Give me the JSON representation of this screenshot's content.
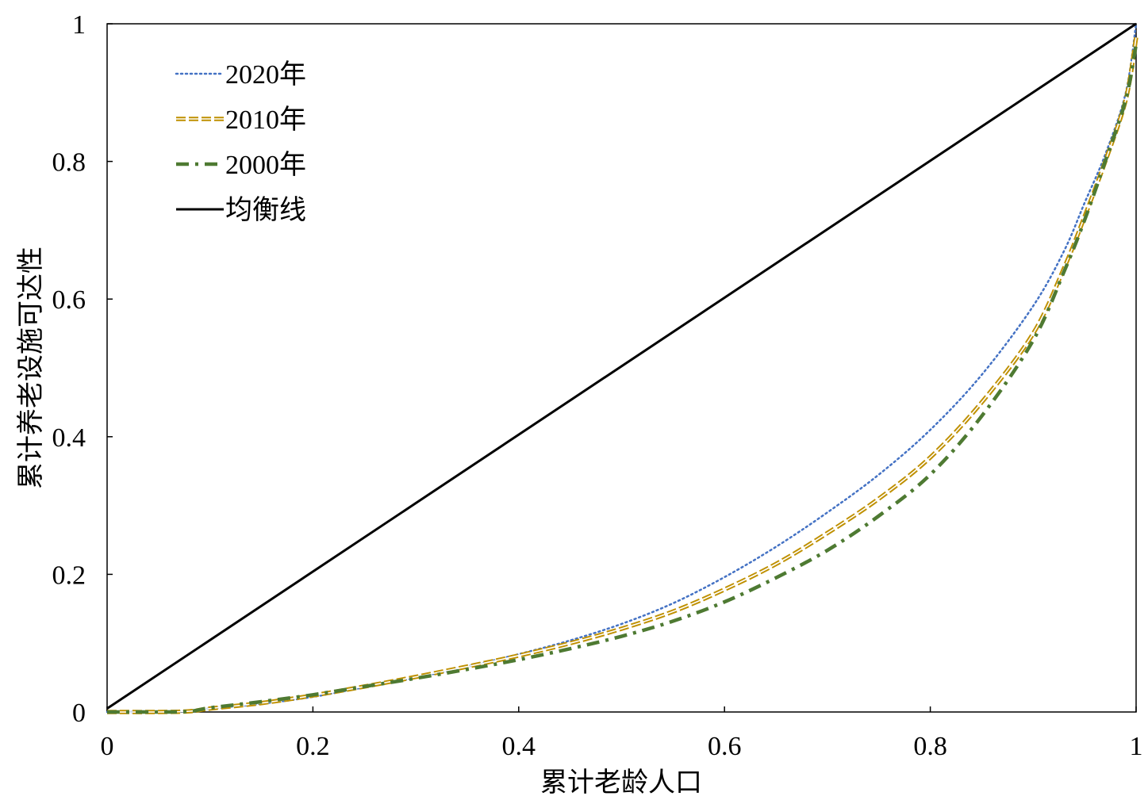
{
  "chart_data": {
    "type": "line",
    "title": "",
    "xlabel": "累计老龄人口",
    "ylabel": "累计养老设施可达性",
    "xlim": [
      0,
      1
    ],
    "ylim": [
      0,
      1
    ],
    "xticks": [
      0,
      0.2,
      0.4,
      0.6,
      0.8,
      1
    ],
    "xtick_labels": [
      "0",
      "0.2",
      "0.4",
      "0.6",
      "0.8",
      "1"
    ],
    "yticks": [
      0,
      0.2,
      0.4,
      0.6,
      0.8,
      1
    ],
    "ytick_labels": [
      "0",
      "0.2",
      "0.4",
      "0.6",
      "0.8",
      "1"
    ],
    "grid": false,
    "legend_position": "top-left",
    "series": [
      {
        "name": "2020年",
        "style": "dotted",
        "color": "#4472C4",
        "x": [
          0,
          0.05,
          0.08,
          0.1,
          0.15,
          0.2,
          0.25,
          0.3,
          0.35,
          0.4,
          0.45,
          0.5,
          0.55,
          0.6,
          0.65,
          0.7,
          0.75,
          0.8,
          0.85,
          0.9,
          0.93,
          0.95,
          0.97,
          0.99,
          1
        ],
        "y": [
          0,
          0,
          0.001,
          0.005,
          0.012,
          0.022,
          0.036,
          0.05,
          0.066,
          0.084,
          0.104,
          0.128,
          0.158,
          0.196,
          0.24,
          0.29,
          0.345,
          0.41,
          0.49,
          0.59,
          0.67,
          0.74,
          0.81,
          0.9,
          1.0
        ]
      },
      {
        "name": "2010年",
        "style": "double-dashed",
        "color": "#BF9000",
        "x": [
          0,
          0.05,
          0.08,
          0.1,
          0.15,
          0.2,
          0.25,
          0.3,
          0.35,
          0.4,
          0.45,
          0.5,
          0.55,
          0.6,
          0.65,
          0.7,
          0.75,
          0.8,
          0.85,
          0.9,
          0.93,
          0.95,
          0.97,
          0.99,
          1
        ],
        "y": [
          0,
          0,
          0.001,
          0.005,
          0.013,
          0.024,
          0.037,
          0.051,
          0.066,
          0.082,
          0.1,
          0.121,
          0.146,
          0.178,
          0.215,
          0.26,
          0.31,
          0.37,
          0.45,
          0.55,
          0.645,
          0.72,
          0.8,
          0.89,
          0.98
        ]
      },
      {
        "name": "2000年",
        "style": "dash-dot",
        "color": "#4E7A32",
        "x": [
          0,
          0.05,
          0.08,
          0.1,
          0.15,
          0.2,
          0.25,
          0.3,
          0.35,
          0.4,
          0.45,
          0.5,
          0.55,
          0.6,
          0.65,
          0.7,
          0.75,
          0.8,
          0.85,
          0.9,
          0.93,
          0.95,
          0.97,
          0.99,
          1
        ],
        "y": [
          0,
          0,
          0.001,
          0.006,
          0.015,
          0.025,
          0.037,
          0.049,
          0.062,
          0.076,
          0.092,
          0.11,
          0.132,
          0.16,
          0.195,
          0.235,
          0.285,
          0.345,
          0.43,
          0.54,
          0.64,
          0.715,
          0.8,
          0.89,
          0.97
        ]
      },
      {
        "name": "均衡线",
        "style": "solid",
        "color": "#000000",
        "x": [
          0,
          1
        ],
        "y": [
          0.005,
          1
        ]
      }
    ]
  }
}
